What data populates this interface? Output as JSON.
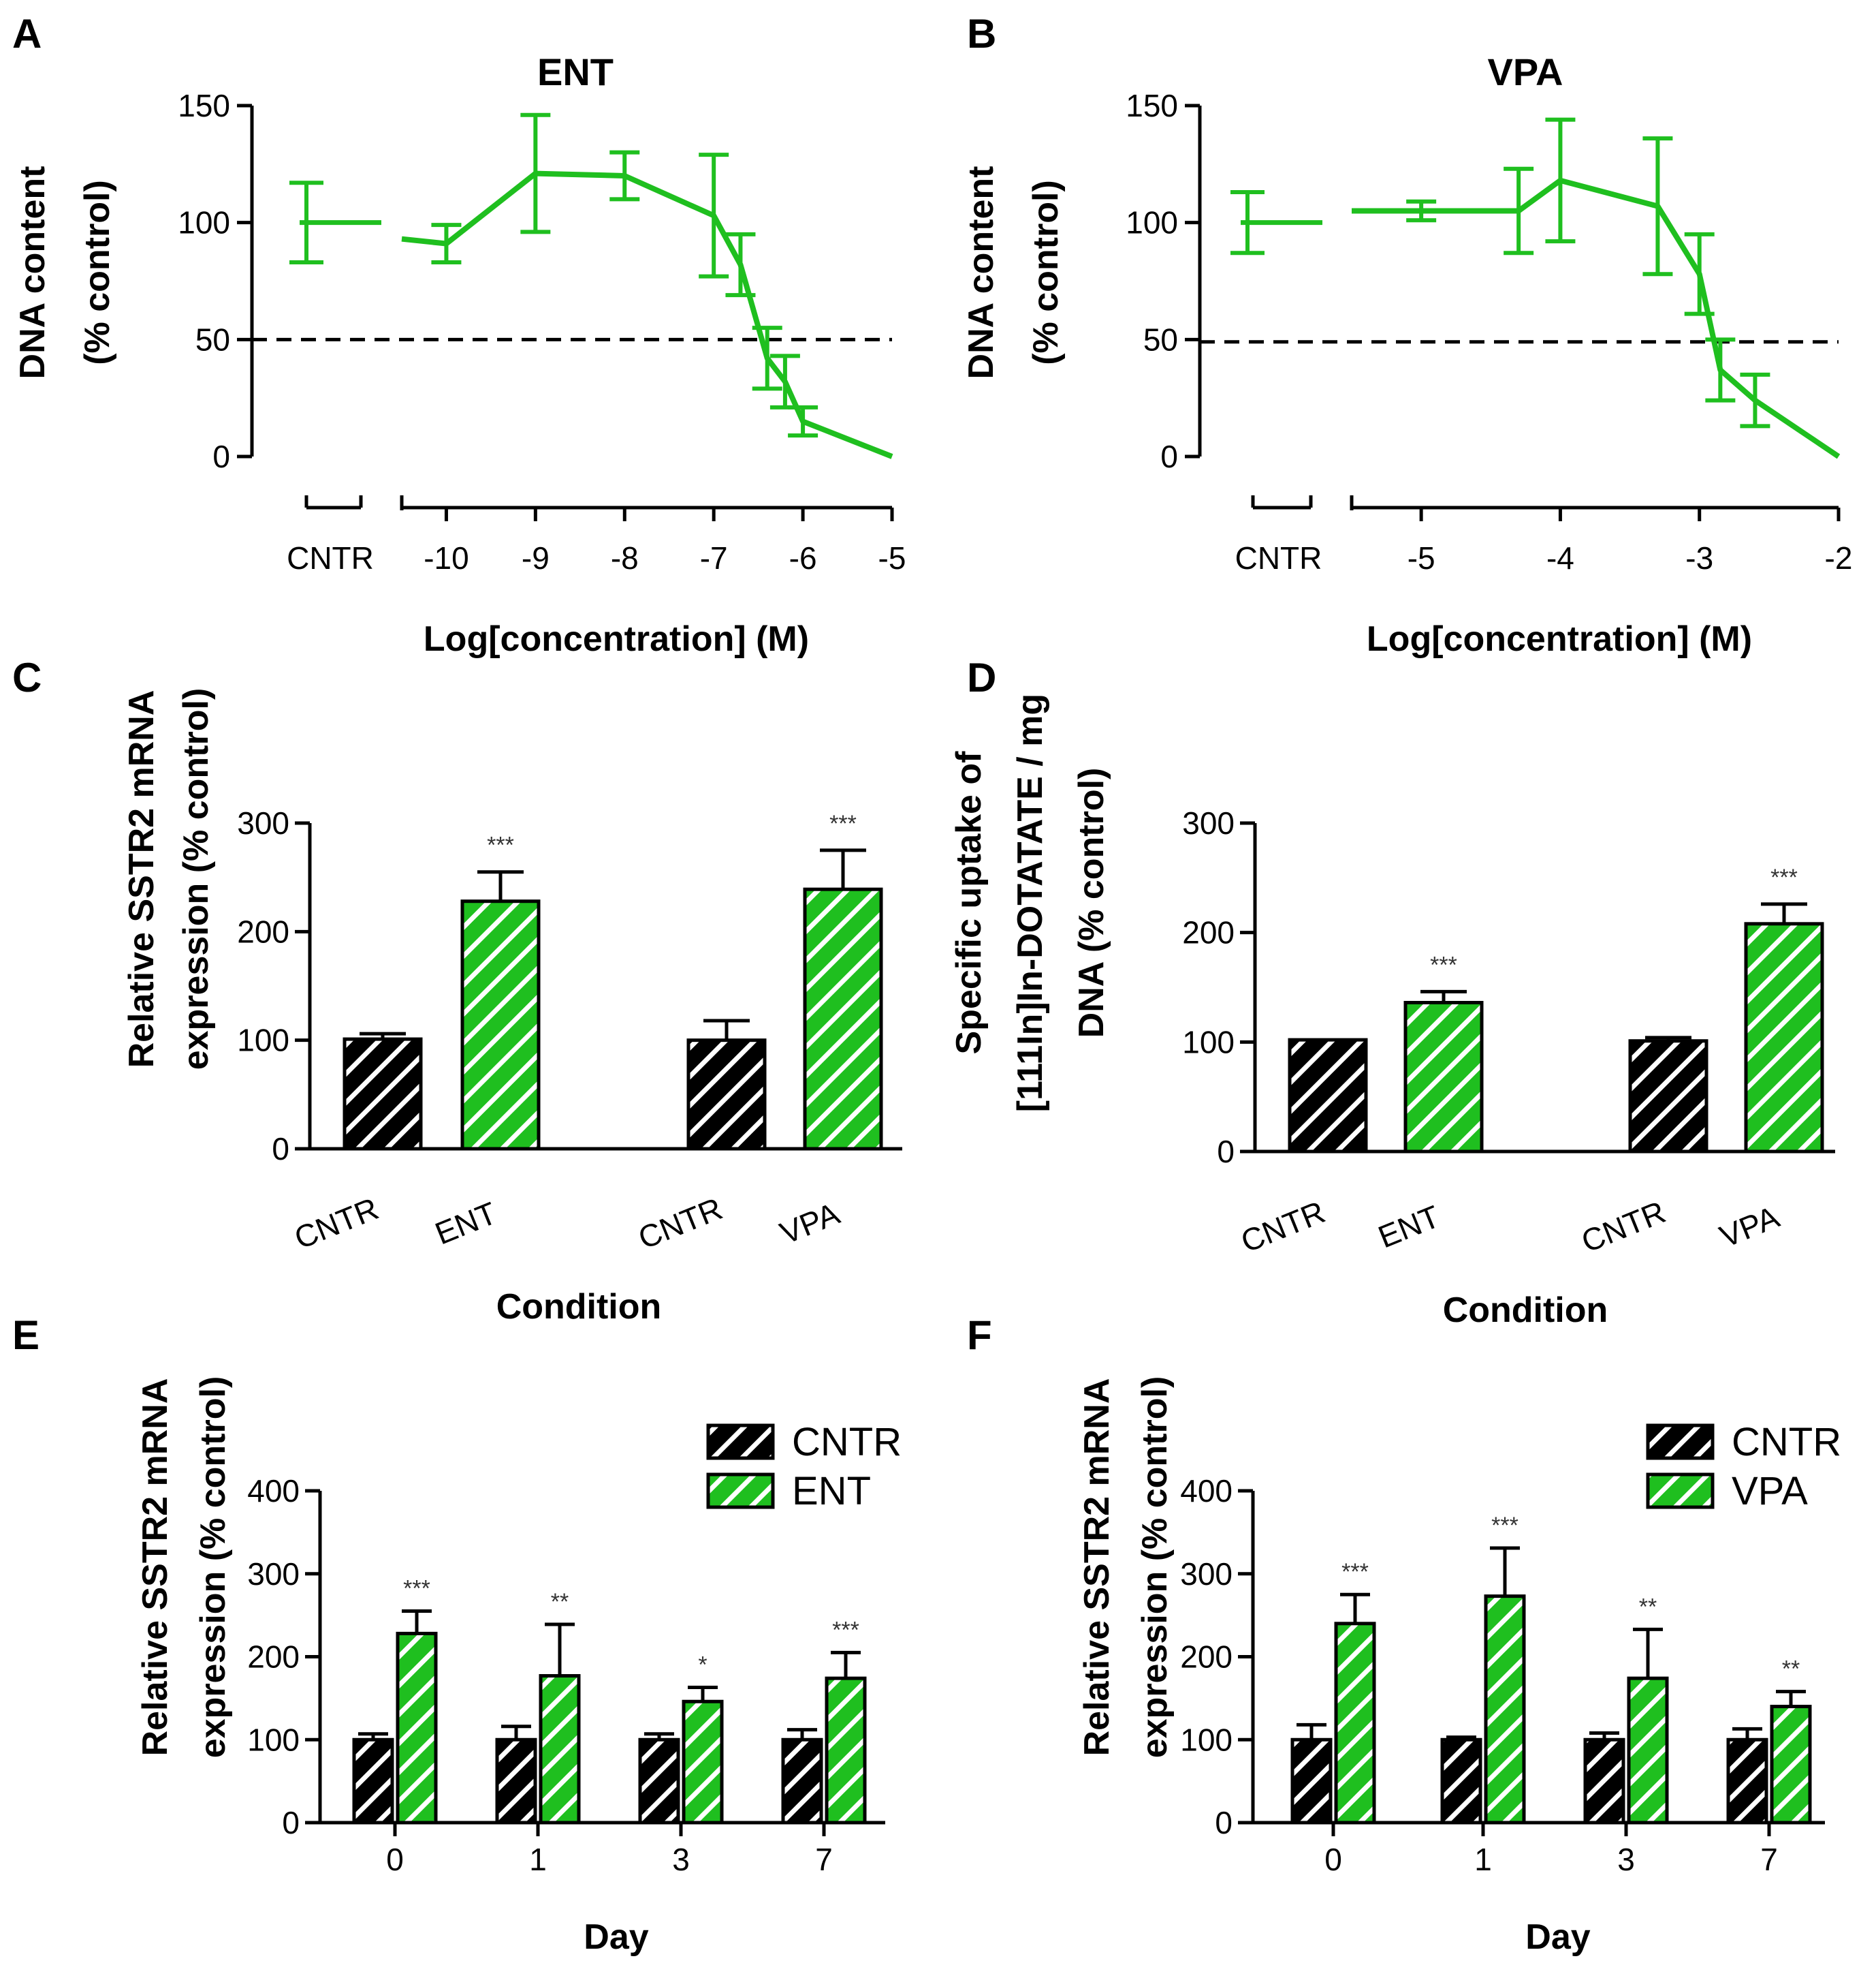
{
  "colors": {
    "green": "#1fbf1f",
    "black": "#000000",
    "hatch": "#ffffff"
  },
  "chart_data": [
    {
      "id": "A",
      "type": "line",
      "panel": "A",
      "title": "ENT",
      "ylabel": [
        "DNA content",
        "(% control)"
      ],
      "xlabel": "Log[concentration] (M)",
      "ylim": [
        0,
        150
      ],
      "yticks": [
        0,
        50,
        100,
        150
      ],
      "xlim": [
        -10.5,
        -5
      ],
      "xticks": [
        -10,
        -9,
        -8,
        -7,
        -6,
        -5
      ],
      "xtick_labels": [
        "-10",
        "-9",
        "-8",
        "-7",
        "-6",
        "-5"
      ],
      "control_label": "CNTR",
      "control": {
        "y": 100,
        "err": 17
      },
      "threshold": 50,
      "series": [
        {
          "name": "ENT",
          "points": [
            {
              "x": -10.5,
              "y": 93,
              "err": 0
            },
            {
              "x": -10,
              "y": 91,
              "err": 8
            },
            {
              "x": -9,
              "y": 121,
              "err": 25
            },
            {
              "x": -8,
              "y": 120,
              "err": 10
            },
            {
              "x": -7,
              "y": 103,
              "err": 26
            },
            {
              "x": -6.7,
              "y": 82,
              "err": 13
            },
            {
              "x": -6.4,
              "y": 42,
              "err": 13
            },
            {
              "x": -6.2,
              "y": 32,
              "err": 11
            },
            {
              "x": -6,
              "y": 15,
              "err": 6
            },
            {
              "x": -5,
              "y": 0,
              "err": 0
            }
          ]
        }
      ]
    },
    {
      "id": "B",
      "type": "line",
      "panel": "B",
      "title": "VPA",
      "ylabel": [
        "DNA content",
        "(% control)"
      ],
      "xlabel": "Log[concentration] (M)",
      "ylim": [
        0,
        150
      ],
      "yticks": [
        0,
        50,
        100,
        150
      ],
      "xlim": [
        -5.5,
        -2
      ],
      "xticks": [
        -5,
        -4,
        -3,
        -2
      ],
      "xtick_labels": [
        "-5",
        "-4",
        "-3",
        "-2"
      ],
      "control_label": "CNTR",
      "control": {
        "y": 100,
        "err": 13
      },
      "threshold": 49,
      "series": [
        {
          "name": "VPA",
          "points": [
            {
              "x": -5.5,
              "y": 105,
              "err": 0
            },
            {
              "x": -5,
              "y": 105,
              "err": 4
            },
            {
              "x": -4.3,
              "y": 105,
              "err": 18
            },
            {
              "x": -4,
              "y": 118,
              "err": 26
            },
            {
              "x": -3.3,
              "y": 107,
              "err": 29
            },
            {
              "x": -3,
              "y": 78,
              "err": 17
            },
            {
              "x": -2.85,
              "y": 37,
              "err": 13
            },
            {
              "x": -2.6,
              "y": 24,
              "err": 11
            },
            {
              "x": -2,
              "y": 0,
              "err": 0
            }
          ]
        }
      ]
    },
    {
      "id": "C",
      "type": "bar",
      "panel": "C",
      "ylabel": [
        "Relative SSTR2 mRNA",
        "expression (% control)"
      ],
      "xlabel": "Condition",
      "ylim": [
        0,
        300
      ],
      "yticks": [
        0,
        100,
        200,
        300
      ],
      "categories": [
        "CNTR",
        "ENT",
        "CNTR",
        "VPA"
      ],
      "values": [
        101,
        228,
        100,
        239
      ],
      "errors": [
        5,
        27,
        18,
        36
      ],
      "groups": [
        "control",
        "treated",
        "control",
        "treated"
      ],
      "annotations": [
        "",
        "***",
        "",
        "***"
      ]
    },
    {
      "id": "D",
      "type": "bar",
      "panel": "D",
      "ylabel": [
        "Specific uptake of",
        "[111In]In-DOTATATE / mg",
        "DNA (% control)"
      ],
      "xlabel": "Condition",
      "ylim": [
        0,
        300
      ],
      "yticks": [
        0,
        100,
        200,
        300
      ],
      "categories": [
        "CNTR",
        "ENT",
        "CNTR",
        "VPA"
      ],
      "values": [
        102,
        136,
        101,
        208
      ],
      "errors": [
        0,
        10,
        3,
        18
      ],
      "groups": [
        "control",
        "treated",
        "control",
        "treated"
      ],
      "annotations": [
        "",
        "***",
        "",
        "***"
      ]
    },
    {
      "id": "E",
      "type": "bar",
      "panel": "E",
      "ylabel": [
        "Relative SSTR2 mRNA",
        "expression (% control)"
      ],
      "xlabel": "Day",
      "ylim": [
        0,
        400
      ],
      "yticks": [
        0,
        100,
        200,
        300,
        400
      ],
      "categories": [
        "0",
        "1",
        "3",
        "7"
      ],
      "series": [
        {
          "name": "CNTR",
          "values": [
            100,
            100,
            100,
            100
          ],
          "errors": [
            7,
            16,
            7,
            12
          ]
        },
        {
          "name": "ENT",
          "values": [
            228,
            177,
            146,
            174
          ],
          "errors": [
            27,
            62,
            17,
            31
          ]
        }
      ],
      "annotations": [
        "***",
        "**",
        "*",
        "***"
      ]
    },
    {
      "id": "F",
      "type": "bar",
      "panel": "F",
      "ylabel": [
        "Relative SSTR2 mRNA",
        "expression (% control)"
      ],
      "xlabel": "Day",
      "ylim": [
        0,
        400
      ],
      "yticks": [
        0,
        100,
        200,
        300,
        400
      ],
      "categories": [
        "0",
        "1",
        "3",
        "7"
      ],
      "series": [
        {
          "name": "CNTR",
          "values": [
            100,
            100,
            100,
            100
          ],
          "errors": [
            18,
            3,
            8,
            13
          ]
        },
        {
          "name": "VPA",
          "values": [
            240,
            273,
            174,
            140
          ],
          "errors": [
            35,
            58,
            59,
            18
          ]
        }
      ],
      "annotations": [
        "***",
        "***",
        "**",
        "**"
      ]
    }
  ]
}
